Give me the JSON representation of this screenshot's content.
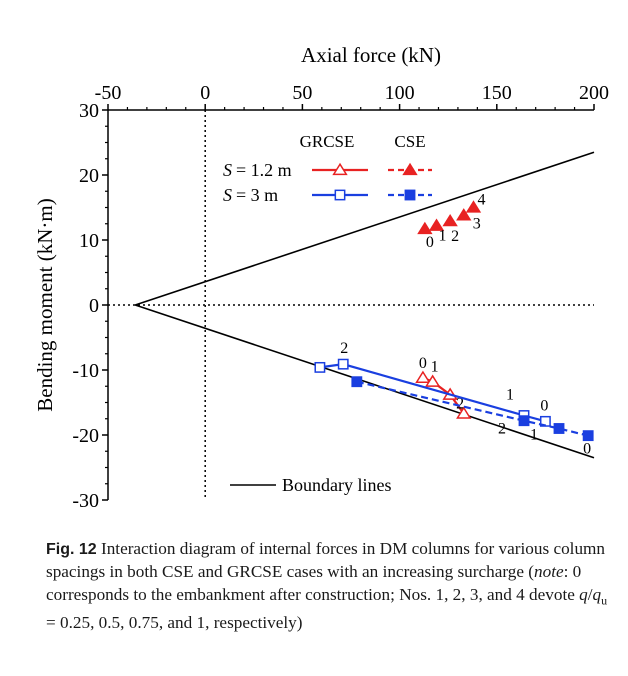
{
  "chart_data": {
    "type": "scatter",
    "xlabel": "Axial force (kN)",
    "ylabel": "Bending moment (kN·m)",
    "xlim": [
      -50,
      200
    ],
    "ylim": [
      -30,
      30
    ],
    "x_ticks": [
      -50,
      0,
      50,
      100,
      150,
      200
    ],
    "y_ticks": [
      30,
      20,
      10,
      0,
      -10,
      -20,
      -30
    ],
    "x_tick_labels": [
      "-50",
      "0",
      "50",
      "100",
      "150",
      "200"
    ],
    "y_tick_labels": [
      "30",
      "20",
      "10",
      "0",
      "-10",
      "-20",
      "-30"
    ],
    "x_axis_position": "top",
    "grid": false,
    "reference_lines": [
      {
        "orientation": "vertical",
        "value": 0,
        "style": "dotted"
      },
      {
        "orientation": "horizontal",
        "value": 0,
        "style": "dotted"
      }
    ],
    "boundary_lines": {
      "name": "Boundary lines",
      "vertex": [
        -36,
        0
      ],
      "upper_end": [
        200,
        23.5
      ],
      "lower_end": [
        200,
        -23.5
      ]
    },
    "legend": {
      "position": "top-center",
      "col_headers": [
        "GRCSE",
        "CSE"
      ],
      "row_label_prefix": "S",
      "row_labels": [
        "= 1.2 m",
        "= 3 m"
      ]
    },
    "series": [
      {
        "name": "GRCSE S=1.2 m",
        "color": "#e82222",
        "marker": "open-triangle",
        "line": "solid",
        "points": [
          {
            "x": 112,
            "y": -11.2,
            "label": "0"
          },
          {
            "x": 117,
            "y": -11.8,
            "label": "1"
          },
          {
            "x": 126,
            "y": -13.8,
            "label": "2"
          },
          {
            "x": 133,
            "y": -16.7,
            "label": ""
          }
        ]
      },
      {
        "name": "CSE S=1.2 m",
        "color": "#e82222",
        "marker": "filled-triangle",
        "line": "dashed",
        "points": [
          {
            "x": 113,
            "y": 11.7,
            "label": "0"
          },
          {
            "x": 119,
            "y": 12.2,
            "label": "1"
          },
          {
            "x": 126,
            "y": 12.9,
            "label": "2"
          },
          {
            "x": 133,
            "y": 13.8,
            "label": "3"
          },
          {
            "x": 138,
            "y": 15.0,
            "label": "4"
          }
        ]
      },
      {
        "name": "GRCSE S=3 m",
        "color": "#1a3fe0",
        "marker": "open-square",
        "line": "solid",
        "points": [
          {
            "x": 59,
            "y": -9.6,
            "label": ""
          },
          {
            "x": 71,
            "y": -9.1,
            "label": "2"
          },
          {
            "x": 164,
            "y": -17.0,
            "label": "1"
          },
          {
            "x": 175,
            "y": -17.9,
            "label": "0"
          }
        ]
      },
      {
        "name": "CSE S=3 m",
        "color": "#1a3fe0",
        "marker": "filled-square",
        "line": "dashed",
        "points": [
          {
            "x": 78,
            "y": -11.8,
            "label": ""
          },
          {
            "x": 164,
            "y": -17.8,
            "label": "2"
          },
          {
            "x": 182,
            "y": -19.0,
            "label": "1"
          },
          {
            "x": 197,
            "y": -20.1,
            "label": "0"
          }
        ]
      }
    ]
  },
  "caption": {
    "label": "Fig. 12",
    "text": " Interaction diagram of internal forces in DM columns for various column spacings in both CSE and GRCSE cases with an increasing surcharge (",
    "note_word": "note",
    "text2": ": 0 corresponds to the embankment after construction; Nos. 1, 2, 3, and 4 devote ",
    "q": "q",
    "slash": "/",
    "qu": "q",
    "sub": "u",
    "text3": " = 0.25, 0.5, 0.75, and 1, respectively)"
  }
}
